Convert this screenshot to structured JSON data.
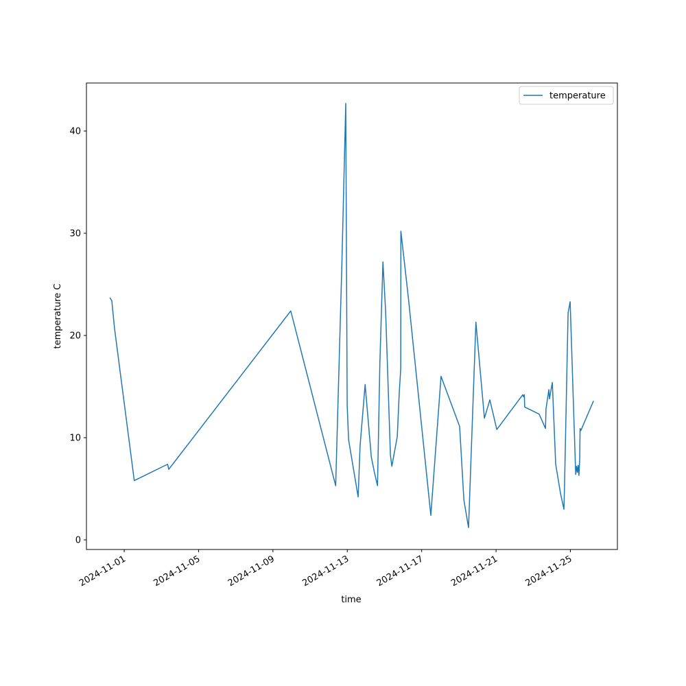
{
  "chart_data": {
    "type": "line",
    "x_label": "time",
    "y_label": "temperature C",
    "x": [
      "2024-10-31T05:30",
      "2024-10-31T08:00",
      "2024-10-31T11:30",
      "2024-11-01T13:00",
      "2024-11-03T08:00",
      "2024-11-03T09:30",
      "2024-11-09T23:00",
      "2024-11-12T09:00",
      "2024-11-12T17:00",
      "2024-11-12T22:00",
      "2024-11-12T23:50",
      "2024-11-13T01:40",
      "2024-11-13T14:00",
      "2024-11-13T16:30",
      "2024-11-13T23:00",
      "2024-11-14T07:00",
      "2024-11-14T11:00",
      "2024-11-14T15:00",
      "2024-11-14T18:00",
      "2024-11-14T22:00",
      "2024-11-15T01:30",
      "2024-11-15T07:40",
      "2024-11-15T09:30",
      "2024-11-15T16:30",
      "2024-11-15T19:00",
      "2024-11-15T21:00",
      "2024-11-15T21:10",
      "2024-11-16T06:40",
      "2024-11-17T11:50",
      "2024-11-18T01:00",
      "2024-11-19T01:00",
      "2024-11-19T06:30",
      "2024-11-19T12:30",
      "2024-11-19T22:00",
      "2024-11-20T09:00",
      "2024-11-20T16:00",
      "2024-11-21T01:00",
      "2024-11-22T10:30",
      "2024-11-22T11:30",
      "2024-11-22T12:30",
      "2024-11-22T13:00",
      "2024-11-23T07:40",
      "2024-11-23T15:50",
      "2024-11-23T16:30",
      "2024-11-23T20:10",
      "2024-11-23T21:00",
      "2024-11-24T00:40",
      "2024-11-24T05:00",
      "2024-11-24T11:20",
      "2024-11-24T15:40",
      "2024-11-24T16:30",
      "2024-11-24T21:00",
      "2024-11-24T23:40",
      "2024-11-25T06:50",
      "2024-11-25T08:00",
      "2024-11-25T09:00",
      "2024-11-25T10:00",
      "2024-11-25T11:00",
      "2024-11-25T12:00",
      "2024-11-25T12:30",
      "2024-11-25T13:30",
      "2024-11-26T05:50"
    ],
    "series": [
      {
        "name": "temperature",
        "color": "#1f77b4",
        "values": [
          23.7,
          23.4,
          20.7,
          5.8,
          7.4,
          6.9,
          22.4,
          5.3,
          27.0,
          42.7,
          13.2,
          9.8,
          4.2,
          9.2,
          15.2,
          8.1,
          6.6,
          5.3,
          17.2,
          27.2,
          22.3,
          8.3,
          7.2,
          10.1,
          14.3,
          16.8,
          30.2,
          23.8,
          2.4,
          16.0,
          11.1,
          3.9,
          1.2,
          21.3,
          11.9,
          13.7,
          10.8,
          14.2,
          14.0,
          14.2,
          13.0,
          12.3,
          10.9,
          12.8,
          14.7,
          13.8,
          15.4,
          7.4,
          4.5,
          3.0,
          5.6,
          22.2,
          23.3,
          6.4,
          7.2,
          6.6,
          7.3,
          6.3,
          7.9,
          10.9,
          10.7,
          13.6
        ]
      }
    ],
    "xlim": [
      "2024-10-29T23:15",
      "2024-11-27T12:40"
    ],
    "xticks": [
      "2024-11-01",
      "2024-11-05",
      "2024-11-09",
      "2024-11-13",
      "2024-11-17",
      "2024-11-21",
      "2024-11-25"
    ],
    "ylim": [
      -0.94,
      44.7
    ],
    "yticks": [
      0,
      10,
      20,
      30,
      40
    ],
    "grid": false,
    "legend": "upper right"
  }
}
